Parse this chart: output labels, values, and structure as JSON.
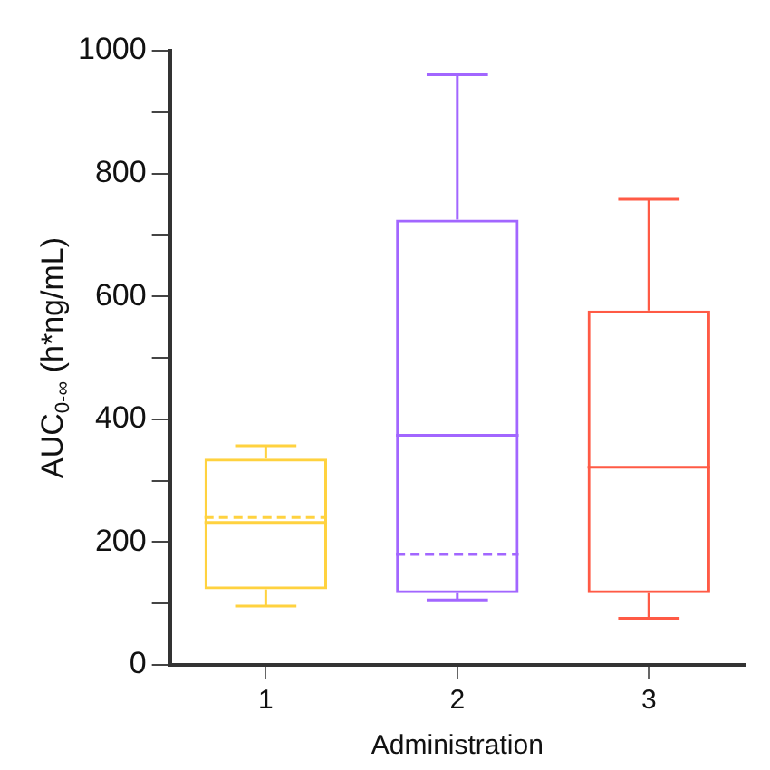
{
  "chart_data": {
    "type": "box",
    "xlabel": "Administration",
    "ylabel": "AUC$_{0-∞}$ (h*ng/mL)",
    "categories": [
      "1",
      "2",
      "3"
    ],
    "colors": [
      "#ffd23f",
      "#a266ff",
      "#ff5a45"
    ],
    "boxes": [
      {
        "low": 96,
        "q1": 123,
        "median": 232,
        "q3": 336,
        "high": 357,
        "mean": 240
      },
      {
        "low": 106,
        "q1": 117,
        "median": 374,
        "q3": 725,
        "high": 961,
        "mean": 180
      },
      {
        "low": 76,
        "q1": 117,
        "median": 322,
        "q3": 577,
        "high": 758
      }
    ],
    "ylim": [
      0,
      1000
    ],
    "yticks": [
      0,
      {
        "value": 100,
        "label": null
      },
      200,
      {
        "value": 300,
        "label": null
      },
      400,
      {
        "value": 500,
        "label": null
      },
      600,
      {
        "value": 700,
        "label": null
      },
      800,
      {
        "value": 900,
        "label": null
      },
      1000
    ],
    "grid": false,
    "legend": false
  }
}
